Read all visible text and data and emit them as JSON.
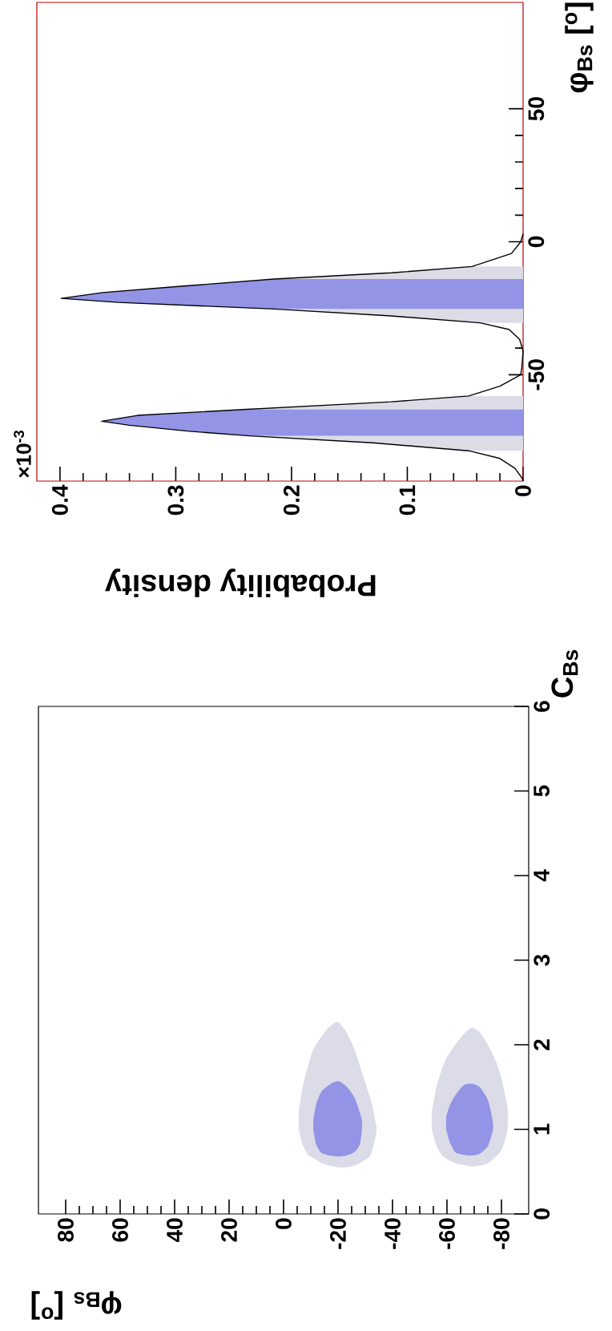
{
  "chart_data": [
    {
      "type": "area",
      "xlabel": "φ$_{Bs}$ [$^{o}$]",
      "ylabel": "C$_{Bs}$",
      "xlim": [
        90,
        -90
      ],
      "ylim": [
        0,
        6
      ],
      "xticks": [
        80,
        60,
        40,
        20,
        0,
        -20,
        -40,
        -60,
        -80
      ],
      "yticks": [
        0,
        1,
        2,
        3,
        4,
        5,
        6
      ],
      "series": [
        {
          "color": "#dcdce8",
          "x": [
            -5.6,
            -7,
            -9,
            -11,
            -14,
            -17,
            -20,
            -23,
            -26,
            -29,
            -32,
            -34
          ],
          "values": [
            null,
            null,
            null,
            null,
            null,
            null,
            null,
            null,
            null,
            null,
            null,
            null
          ],
          "lower": [
            1.0,
            0.82,
            0.7,
            0.66,
            0.6,
            0.57,
            0.55,
            0.55,
            0.57,
            0.62,
            0.7,
            0.95
          ],
          "upper": [
            1.2,
            1.5,
            1.75,
            1.95,
            2.1,
            2.22,
            2.27,
            2.15,
            1.95,
            1.65,
            1.35,
            1.05
          ]
        },
        {
          "color": "#9494e6",
          "x": [
            -10.9,
            -12,
            -14,
            -17,
            -20,
            -23,
            -26,
            -28,
            -28.8
          ],
          "values": [
            null,
            null,
            null,
            null,
            null,
            null,
            null,
            null,
            null
          ],
          "lower": [
            1.0,
            0.82,
            0.72,
            0.69,
            0.68,
            0.69,
            0.73,
            0.82,
            1.0
          ],
          "upper": [
            1.1,
            1.3,
            1.45,
            1.53,
            1.57,
            1.51,
            1.38,
            1.2,
            1.1
          ]
        },
        {
          "color": "#dcdce8",
          "x": [
            -54.4,
            -56,
            -58,
            -60,
            -63,
            -66,
            -69,
            -72,
            -75,
            -78,
            -80,
            -82,
            -82.4
          ],
          "values": [
            null,
            null,
            null,
            null,
            null,
            null,
            null,
            null,
            null,
            null,
            null,
            null,
            null
          ],
          "lower": [
            1.0,
            0.82,
            0.7,
            0.65,
            0.6,
            0.58,
            0.56,
            0.57,
            0.6,
            0.68,
            0.75,
            0.95,
            1.1
          ],
          "upper": [
            1.2,
            1.48,
            1.7,
            1.85,
            2.0,
            2.12,
            2.2,
            2.15,
            2.0,
            1.8,
            1.6,
            1.3,
            1.2
          ]
        },
        {
          "color": "#9494e6",
          "x": [
            -59.7,
            -61,
            -63,
            -66,
            -69,
            -72,
            -75,
            -76.8
          ],
          "values": [
            null,
            null,
            null,
            null,
            null,
            null,
            null,
            null
          ],
          "lower": [
            1.0,
            0.85,
            0.73,
            0.7,
            0.69,
            0.71,
            0.8,
            0.98
          ],
          "upper": [
            1.15,
            1.28,
            1.4,
            1.52,
            1.54,
            1.5,
            1.35,
            1.1
          ]
        }
      ]
    },
    {
      "type": "line",
      "xlabel": "Probability density",
      "ylabel": "φ$_{Bs}$ [$^{o}$]",
      "annotations": [
        "×10$^{-3}$"
      ],
      "xlim": [
        0.42,
        0
      ],
      "ylim": [
        -90,
        90
      ],
      "xticks": [
        0.4,
        0.3,
        0.2,
        0.1,
        0
      ],
      "yticks": [
        -50,
        0,
        50
      ],
      "bands": [
        {
          "axis": "y",
          "from": -78.6,
          "to": -58,
          "color": "#dcdce6"
        },
        {
          "axis": "y",
          "from": -30.5,
          "to": -9.3,
          "color": "#dcdce6"
        },
        {
          "axis": "y",
          "from": -73,
          "to": -63.1,
          "color": "#9494e6"
        },
        {
          "axis": "y",
          "from": -25.3,
          "to": -14,
          "color": "#9494e6"
        }
      ],
      "series": [
        {
          "color": "#000000",
          "x": [
            0,
            0.001,
            0.007,
            0.02,
            0.047,
            0.13,
            0.236,
            0.29,
            0.34,
            0.364,
            0.333,
            0.242,
            0.114,
            0.047,
            0.02,
            0.002,
            0.001,
            0,
            0.003,
            0.012,
            0.037,
            0.114,
            0.215,
            0.35,
            0.399,
            0.363,
            0.3,
            0.215,
            0.114,
            0.044,
            0.01,
            0.002,
            0
          ],
          "values": [
            -90,
            -88.8,
            -85.2,
            -81.5,
            -78.6,
            -75.6,
            -73,
            -71.2,
            -69,
            -67.5,
            -65.3,
            -63.1,
            -60.2,
            -58,
            -54.3,
            -50,
            -47,
            -41,
            -36.7,
            -33,
            -30.5,
            -27.9,
            -25.3,
            -22.8,
            -21.3,
            -19.1,
            -16.9,
            -14,
            -11.7,
            -9.3,
            -4.4,
            0,
            3
          ]
        }
      ]
    }
  ]
}
